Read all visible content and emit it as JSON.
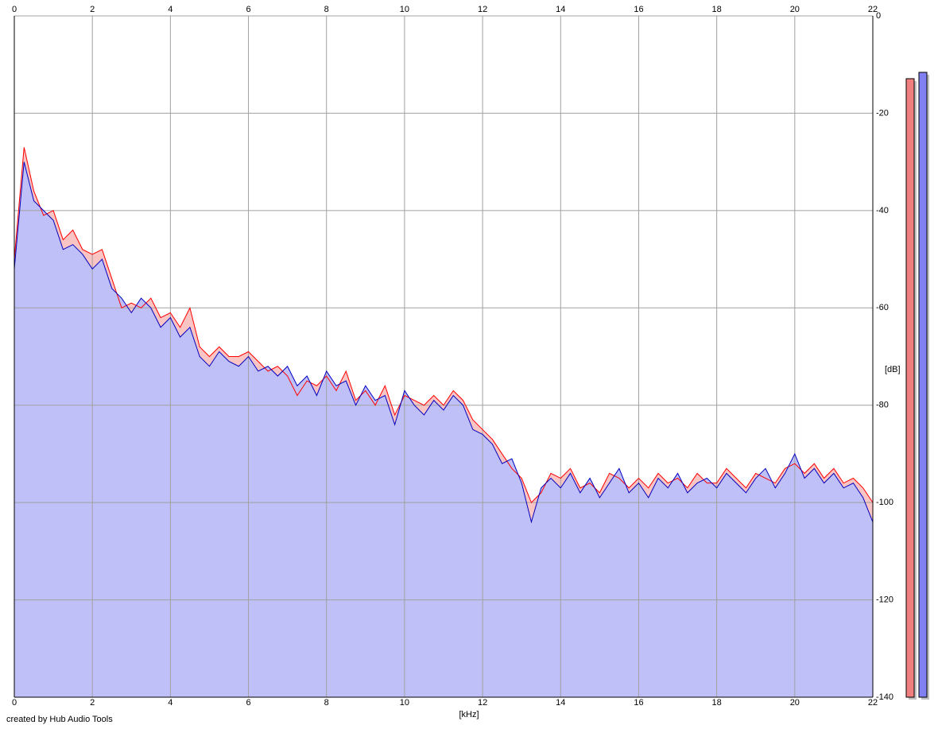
{
  "chart_data": {
    "type": "area",
    "xlabel": "[kHz]",
    "ylabel": "[dB]",
    "footer": "created by Hub Audio Tools",
    "xlim": [
      0,
      22
    ],
    "xticks": [
      0,
      2,
      4,
      6,
      8,
      10,
      12,
      14,
      16,
      18,
      20,
      22
    ],
    "ylim": [
      -140,
      0
    ],
    "yticks": [
      0,
      -20,
      -40,
      -60,
      -80,
      -100,
      -120,
      -140
    ],
    "grid": true,
    "x": [
      0,
      0.25,
      0.5,
      0.75,
      1,
      1.25,
      1.5,
      1.75,
      2,
      2.25,
      2.5,
      2.75,
      3,
      3.25,
      3.5,
      3.75,
      4,
      4.25,
      4.5,
      4.75,
      5,
      5.25,
      5.5,
      5.75,
      6,
      6.25,
      6.5,
      6.75,
      7,
      7.25,
      7.5,
      7.75,
      8,
      8.25,
      8.5,
      8.75,
      9,
      9.25,
      9.5,
      9.75,
      10,
      10.25,
      10.5,
      10.75,
      11,
      11.25,
      11.5,
      11.75,
      12,
      12.25,
      12.5,
      12.75,
      13,
      13.25,
      13.5,
      13.75,
      14,
      14.25,
      14.5,
      14.75,
      15,
      15.25,
      15.5,
      15.75,
      16,
      16.25,
      16.5,
      16.75,
      17,
      17.25,
      17.5,
      17.75,
      18,
      18.25,
      18.5,
      18.75,
      19,
      19.25,
      19.5,
      19.75,
      20,
      20.25,
      20.5,
      20.75,
      21,
      21.25,
      21.5,
      21.75,
      22
    ],
    "series": [
      {
        "color": "#ff0000",
        "fill": "#f8c4c4",
        "values": [
          -50,
          -27,
          -36,
          -41,
          -40,
          -46,
          -44,
          -48,
          -49,
          -48,
          -54,
          -60,
          -59,
          -60,
          -58,
          -62,
          -61,
          -64,
          -60,
          -68,
          -70,
          -68,
          -70,
          -70,
          -69,
          -71,
          -73,
          -72,
          -74,
          -78,
          -75,
          -76,
          -74,
          -77,
          -73,
          -79,
          -77,
          -80,
          -76,
          -82,
          -78,
          -79,
          -80,
          -78,
          -80,
          -77,
          -79,
          -83,
          -85,
          -87,
          -90,
          -93,
          -95,
          -100,
          -98,
          -94,
          -95,
          -93,
          -97,
          -96,
          -98,
          -94,
          -95,
          -97,
          -95,
          -97,
          -94,
          -96,
          -95,
          -97,
          -94,
          -96,
          -96,
          -93,
          -95,
          -97,
          -94,
          -95,
          -96,
          -93,
          -92,
          -94,
          -92,
          -95,
          -93,
          -96,
          -95,
          -97,
          -100
        ]
      },
      {
        "color": "#0000c0",
        "fill": "#c0c0f8",
        "values": [
          -52,
          -30,
          -38,
          -40,
          -42,
          -48,
          -47,
          -49,
          -52,
          -50,
          -56,
          -58,
          -61,
          -58,
          -60,
          -64,
          -62,
          -66,
          -64,
          -70,
          -72,
          -69,
          -71,
          -72,
          -70,
          -73,
          -72,
          -74,
          -72,
          -76,
          -74,
          -78,
          -73,
          -76,
          -75,
          -80,
          -76,
          -79,
          -78,
          -84,
          -77,
          -80,
          -82,
          -79,
          -81,
          -78,
          -80,
          -85,
          -86,
          -88,
          -92,
          -91,
          -96,
          -104,
          -97,
          -95,
          -97,
          -94,
          -98,
          -95,
          -99,
          -96,
          -93,
          -98,
          -96,
          -99,
          -95,
          -97,
          -94,
          -98,
          -96,
          -95,
          -97,
          -94,
          -96,
          -98,
          -95,
          -93,
          -97,
          -94,
          -90,
          -95,
          -93,
          -96,
          -94,
          -97,
          -96,
          -99,
          -104
        ]
      }
    ],
    "meters": [
      {
        "color": "#f08080",
        "value": -12.9
      },
      {
        "color": "#8080f0",
        "value": -11.6
      }
    ]
  }
}
